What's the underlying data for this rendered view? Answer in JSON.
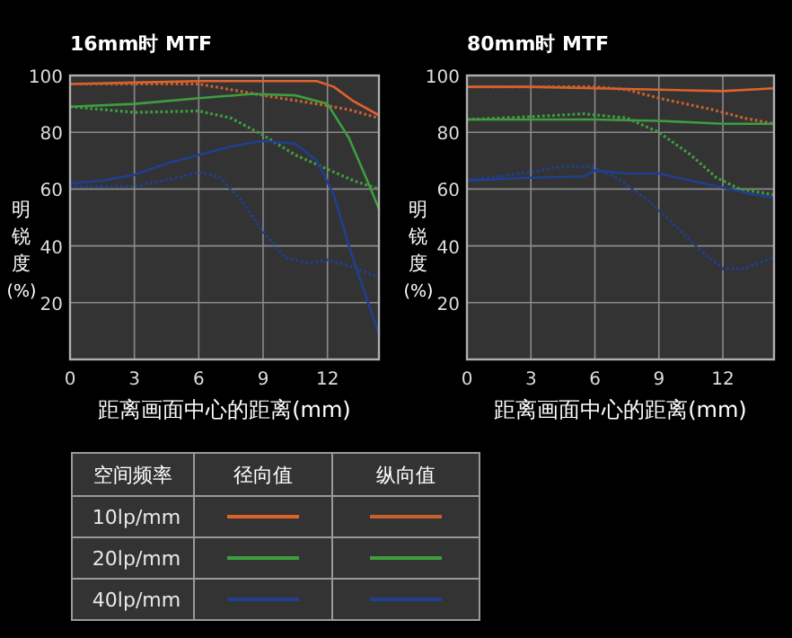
{
  "chart_data": [
    {
      "type": "line",
      "title": "16mm时 MTF",
      "xlabel": "距离画面中心的距离(mm)",
      "ylabel": "明锐度(%)",
      "xlim": [
        0,
        14.4
      ],
      "ylim": [
        0,
        100
      ],
      "xticks": [
        0,
        3,
        6,
        9,
        12
      ],
      "yticks": [
        20,
        40,
        60,
        80,
        100
      ],
      "grid": true,
      "legend": "bottom",
      "legend_title": "空间频率",
      "annotations": [
        "径向值",
        "纵向值"
      ],
      "series": [
        {
          "name": "10lp/mm",
          "color": "#e0622a",
          "line_style": "solid",
          "x": [
            0,
            3,
            6,
            9,
            11.5,
            12.3,
            13.2,
            14.4
          ],
          "values": [
            97,
            97.5,
            98,
            98,
            98,
            96,
            91,
            86
          ]
        },
        {
          "color": "#c8602e",
          "line_style": "dotted",
          "x": [
            0,
            3,
            6,
            9,
            11.5,
            13,
            14.4
          ],
          "values": [
            97,
            97,
            97,
            93,
            90,
            88,
            85
          ]
        },
        {
          "name": "20lp/mm",
          "color": "#3e9e3e",
          "line_style": "solid",
          "x": [
            0,
            3,
            6,
            8.5,
            10.5,
            12,
            13,
            13.8,
            14.4
          ],
          "values": [
            89,
            90,
            92,
            93.5,
            93,
            90,
            78,
            64,
            53
          ]
        },
        {
          "color": "#3e9e3e",
          "line_style": "dotted",
          "x": [
            0,
            3,
            6,
            7.5,
            9,
            10.5,
            12,
            13.2,
            14.4
          ],
          "values": [
            89,
            87,
            87.5,
            85,
            79,
            72,
            67,
            63,
            60
          ]
        },
        {
          "name": "40lp/mm",
          "color": "#1f3f8f",
          "line_style": "solid",
          "x": [
            0,
            1.5,
            3,
            4.5,
            6,
            7.5,
            9,
            10.5,
            11.5,
            12.3,
            13,
            13.8,
            14.4
          ],
          "values": [
            62,
            63,
            65,
            69,
            72,
            75,
            77,
            76,
            70,
            58,
            40,
            22,
            9
          ]
        },
        {
          "color": "#1f3f8f",
          "line_style": "dotted",
          "x": [
            0,
            3,
            5,
            6,
            7,
            8,
            9,
            10,
            11,
            12,
            13,
            14.4
          ],
          "values": [
            61,
            61,
            64,
            66,
            64,
            56,
            45,
            36,
            34,
            35,
            33,
            29
          ]
        }
      ]
    },
    {
      "type": "line",
      "title": "80mm时 MTF",
      "xlabel": "距离画面中心的距离(mm)",
      "ylabel": "明锐度(%)",
      "xlim": [
        0,
        14.4
      ],
      "ylim": [
        0,
        100
      ],
      "xticks": [
        0,
        3,
        6,
        9,
        12
      ],
      "yticks": [
        20,
        40,
        60,
        80,
        100
      ],
      "grid": true,
      "series": [
        {
          "color": "#e0622a",
          "line_style": "solid",
          "x": [
            0,
            3,
            6,
            9,
            12,
            14.4
          ],
          "values": [
            96,
            96,
            95.5,
            95,
            94.5,
            95.5
          ]
        },
        {
          "color": "#c8602e",
          "line_style": "dotted",
          "x": [
            0,
            6,
            7.5,
            9,
            11.5,
            13,
            14.4
          ],
          "values": [
            96,
            96,
            95,
            92,
            88,
            85,
            83
          ]
        },
        {
          "color": "#3e9e3e",
          "line_style": "solid",
          "x": [
            0,
            6,
            9,
            12,
            14.4
          ],
          "values": [
            84.5,
            84.5,
            84,
            83,
            83
          ]
        },
        {
          "color": "#3e9e3e",
          "line_style": "dotted",
          "x": [
            0,
            3,
            5.5,
            7.5,
            9,
            10.5,
            11.7,
            12.8,
            14.4
          ],
          "values": [
            84.5,
            85.5,
            86.5,
            85,
            80,
            72,
            64,
            60,
            58
          ]
        },
        {
          "color": "#1f3f8f",
          "line_style": "solid",
          "x": [
            0,
            3,
            5.5,
            6,
            7.5,
            9,
            10.5,
            12,
            13.5,
            14.4
          ],
          "values": [
            63,
            64,
            64.5,
            66.5,
            65.5,
            65.5,
            63,
            60.5,
            58,
            57
          ]
        },
        {
          "color": "#1f3f8f",
          "line_style": "dotted",
          "x": [
            0,
            3,
            4.5,
            5.8,
            7,
            8.5,
            9.8,
            11,
            12,
            13,
            14.4
          ],
          "values": [
            63,
            66,
            68,
            68,
            64,
            56,
            47,
            38,
            32,
            32,
            36
          ]
        }
      ]
    }
  ]
}
